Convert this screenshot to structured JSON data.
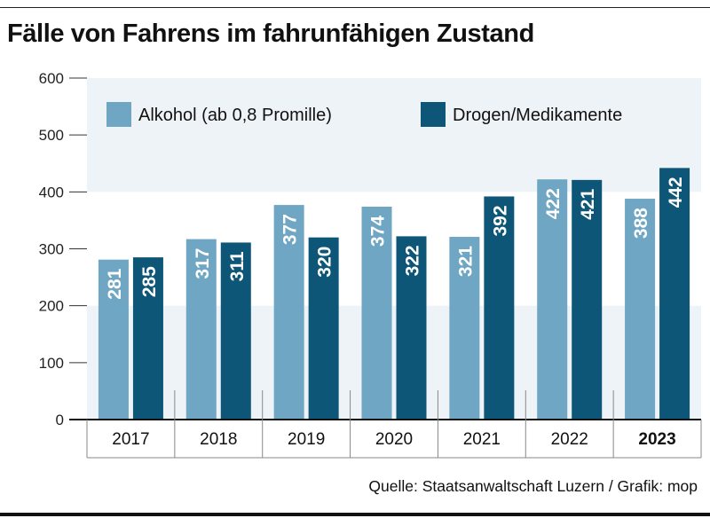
{
  "title": "Fälle von Fahrens im fahrunfähigen Zustand",
  "source": "Quelle: Staatsanwaltschaft Luzern / Grafik: mop",
  "colors": {
    "alkohol": "#6fa6c3",
    "drogen": "#0d5677",
    "band": "#eef3f8"
  },
  "chart_data": {
    "type": "bar",
    "categories": [
      "2017",
      "2018",
      "2019",
      "2020",
      "2021",
      "2022",
      "2023"
    ],
    "highlight_category": "2023",
    "series": [
      {
        "name": "Alkohol (ab 0,8 Promille)",
        "values": [
          281,
          317,
          377,
          374,
          321,
          422,
          388
        ]
      },
      {
        "name": "Drogen/Medikamente",
        "values": [
          285,
          311,
          320,
          322,
          392,
          421,
          442
        ]
      }
    ],
    "ylim": [
      0,
      600
    ],
    "yticks": [
      0,
      100,
      200,
      300,
      400,
      500,
      600
    ],
    "legend": "top-left"
  }
}
